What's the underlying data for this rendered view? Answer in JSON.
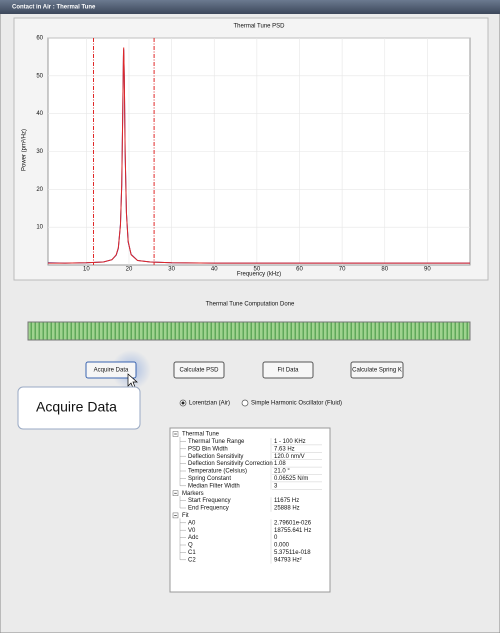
{
  "window": {
    "title": "Contact in Air : Thermal Tune"
  },
  "chart_data": {
    "type": "line",
    "title": "Thermal Tune PSD",
    "x_label": "Frequency (kHz)",
    "y_label": "Power (pm²/Hz)",
    "x": [
      1,
      5,
      10,
      14,
      16,
      17,
      17.5,
      18,
      18.3,
      18.5,
      18.7,
      18.76,
      18.9,
      19.1,
      19.4,
      19.8,
      20.5,
      22,
      25,
      30,
      40,
      50,
      60,
      70,
      80,
      90,
      100
    ],
    "series": [
      {
        "color": "#2b2ba8",
        "values": [
          0.6,
          0.5,
          0.6,
          0.8,
          1.4,
          2.6,
          4.4,
          10.8,
          21.0,
          37.8,
          55.2,
          57,
          49.8,
          29.5,
          13.9,
          6.1,
          2.8,
          1.2,
          0.8,
          0.6,
          0.5,
          0.5,
          0.5,
          0.5,
          0.5,
          0.5,
          0.5
        ]
      },
      {
        "color": "#e02828",
        "values": [
          0.5,
          0.5,
          0.6,
          0.8,
          1.4,
          2.7,
          4.6,
          10.5,
          21.4,
          37.3,
          55.8,
          57.5,
          49.5,
          29.9,
          13.6,
          6.3,
          2.7,
          1.2,
          0.8,
          0.6,
          0.5,
          0.5,
          0.5,
          0.5,
          0.5,
          0.5,
          0.5
        ]
      }
    ],
    "markers": [
      {
        "x": 11.675,
        "color": "#e02828"
      },
      {
        "x": 25.888,
        "color": "#e02828"
      }
    ],
    "xlim": [
      1,
      100
    ],
    "ylim": [
      0,
      60
    ],
    "xticks": [
      10,
      20,
      30,
      40,
      50,
      60,
      70,
      80,
      90
    ],
    "yticks": [
      10,
      20,
      30,
      40,
      50,
      60
    ],
    "grid": true
  },
  "status": "Thermal Tune Computation Done",
  "buttons": [
    "Acquire Data",
    "Calculate PSD",
    "Fit Data",
    "Calculate Spring K"
  ],
  "tooltip": "Acquire Data",
  "radios": [
    {
      "label": "Lorentzian (Air)",
      "selected": true
    },
    {
      "label": "Simple Harmonic Oscillator (Fluid)",
      "selected": false
    }
  ],
  "tree": [
    {
      "label": "Thermal Tune",
      "rows": [
        [
          "Thermal Tune Range",
          "1 - 100 KHz"
        ],
        [
          "PSD Bin Width",
          "7.63 Hz"
        ],
        [
          "Deflection Sensitivity",
          "120.0 nm/V"
        ],
        [
          "Deflection Sensitivity Correction",
          "1.08"
        ],
        [
          "Temperature (Celsius)",
          "21.0 °"
        ],
        [
          "Spring Constant",
          "0.06525 N/m"
        ],
        [
          "Median Filter Width",
          "3"
        ]
      ]
    },
    {
      "label": "Markers",
      "rows": [
        [
          "Start Frequency",
          "11675 Hz"
        ],
        [
          "End Frequency",
          "25888 Hz"
        ]
      ]
    },
    {
      "label": "Fit",
      "rows": [
        [
          "A0",
          "2.79601e-026"
        ],
        [
          "V0",
          "18755.641 Hz"
        ],
        [
          "Adc",
          "0"
        ],
        [
          "Q",
          "0.000"
        ],
        [
          "C1",
          "5.37511e-018"
        ],
        [
          "C2",
          "94793 Hz²"
        ]
      ]
    }
  ]
}
